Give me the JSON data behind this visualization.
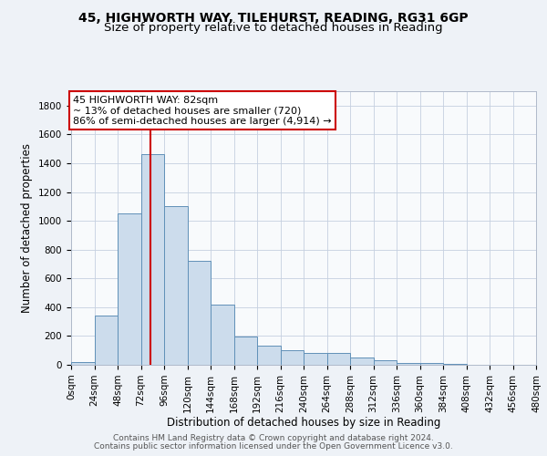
{
  "title_line1": "45, HIGHWORTH WAY, TILEHURST, READING, RG31 6GP",
  "title_line2": "Size of property relative to detached houses in Reading",
  "xlabel": "Distribution of detached houses by size in Reading",
  "ylabel": "Number of detached properties",
  "annotation_line1": "45 HIGHWORTH WAY: 82sqm",
  "annotation_line2": "~ 13% of detached houses are smaller (720)",
  "annotation_line3": "86% of semi-detached houses are larger (4,914) →",
  "bar_edges": [
    0,
    24,
    48,
    72,
    96,
    120,
    144,
    168,
    192,
    216,
    240,
    264,
    288,
    312,
    336,
    360,
    384,
    408,
    432,
    456,
    480
  ],
  "bar_heights": [
    20,
    340,
    1050,
    1460,
    1100,
    720,
    420,
    195,
    130,
    100,
    85,
    80,
    50,
    30,
    15,
    10,
    5,
    3,
    2,
    2,
    2
  ],
  "bar_color": "#ccdcec",
  "bar_edge_color": "#6090b8",
  "red_line_x": 82,
  "ylim": [
    0,
    1900
  ],
  "yticks": [
    0,
    200,
    400,
    600,
    800,
    1000,
    1200,
    1400,
    1600,
    1800
  ],
  "xlim": [
    0,
    480
  ],
  "background_color": "#eef2f7",
  "plot_bg_color": "#f8fafc",
  "grid_color": "#c5cfe0",
  "footer_line1": "Contains HM Land Registry data © Crown copyright and database right 2024.",
  "footer_line2": "Contains public sector information licensed under the Open Government Licence v3.0.",
  "annotation_box_facecolor": "#ffffff",
  "annotation_box_edgecolor": "#cc0000",
  "title_fontsize": 10,
  "subtitle_fontsize": 9.5,
  "tick_fontsize": 7.5,
  "label_fontsize": 8.5,
  "footer_fontsize": 6.5,
  "annotation_fontsize": 8
}
